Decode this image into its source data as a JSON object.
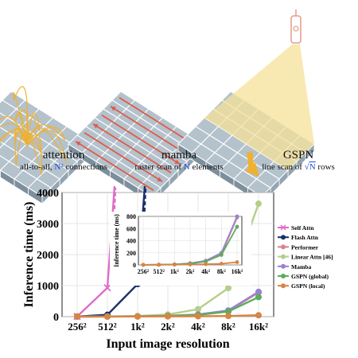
{
  "panels": [
    {
      "title": "attention",
      "subtitle_pre": "all-to-all, ",
      "subtitle_math": "N²",
      "subtitle_post": " connections"
    },
    {
      "title": "mamba",
      "subtitle_pre": "raster scan of ",
      "subtitle_math": "N",
      "subtitle_post": " elements"
    },
    {
      "title": "GSPN",
      "subtitle_pre": "line scan of ",
      "subtitle_sqrt": "√",
      "subtitle_math": "N",
      "subtitle_post": " rows"
    }
  ],
  "colors": {
    "grid_top": "#b4c2cc",
    "grid_side": "#7d8f9c",
    "arrow_orange": "#f0b030",
    "arrow_red": "#e05a4a",
    "lamp": "#e79a8a",
    "beam": "#f6e29a",
    "blue_math": "#1f4fd6"
  },
  "chart_data": [
    {
      "type": "line",
      "xlabel": "Input image resolution",
      "ylabel": "Inference time (ms)",
      "categories": [
        "256²",
        "512²",
        "1k²",
        "2k²",
        "4k²",
        "8k²",
        "16k²"
      ],
      "ylim": [
        0,
        4000
      ],
      "yticks": [
        0,
        1000,
        2000,
        3000,
        4000
      ],
      "grid": true,
      "legend_position": "right",
      "series": [
        {
          "name": "Self Attn",
          "color": "#e06bc9",
          "values": [
            5,
            930,
            null,
            null,
            null,
            null,
            null
          ],
          "extends_off_chart": true,
          "marker": "x"
        },
        {
          "name": "Flash Attn",
          "color": "#1b2f6b",
          "values": [
            4,
            60,
            1050,
            null,
            null,
            null,
            null
          ],
          "extends_off_chart": true,
          "marker": "o"
        },
        {
          "name": "Performer",
          "color": "#d9828e",
          "values": [
            2,
            4,
            10,
            25,
            60,
            180,
            780
          ],
          "marker": "o"
        },
        {
          "name": "Linear Attn [46]",
          "color": "#b4cf8a",
          "values": [
            2,
            6,
            20,
            70,
            240,
            920,
            3640
          ],
          "marker": "o"
        },
        {
          "name": "Mamba",
          "color": "#9a82d0",
          "values": [
            2,
            4,
            10,
            28,
            70,
            200,
            800
          ],
          "marker": "o"
        },
        {
          "name": "GSPN (global)",
          "color": "#5cac5c",
          "values": [
            1,
            3,
            8,
            22,
            55,
            165,
            630
          ],
          "marker": "o"
        },
        {
          "name": "GSPN (local)",
          "color": "#d88444",
          "values": [
            1,
            2,
            4,
            7,
            12,
            20,
            45
          ],
          "marker": "o"
        }
      ]
    },
    {
      "type": "line",
      "ylabel": "Inference time (ms)",
      "categories": [
        "256²",
        "512²",
        "1k²",
        "2k²",
        "4k²",
        "8k²",
        "16k²"
      ],
      "ylim": [
        0,
        800
      ],
      "yticks": [
        0,
        200,
        400,
        600,
        800
      ],
      "grid": true,
      "series": [
        {
          "name": "Performer",
          "color": "#d9828e",
          "values": [
            2,
            4,
            10,
            25,
            60,
            180,
            780
          ]
        },
        {
          "name": "Mamba",
          "color": "#9a82d0",
          "values": [
            2,
            4,
            10,
            28,
            70,
            200,
            800
          ]
        },
        {
          "name": "GSPN (global)",
          "color": "#5cac5c",
          "values": [
            1,
            3,
            8,
            22,
            55,
            165,
            630
          ]
        },
        {
          "name": "GSPN (local)",
          "color": "#d88444",
          "values": [
            1,
            2,
            4,
            7,
            12,
            20,
            45
          ]
        }
      ]
    }
  ]
}
